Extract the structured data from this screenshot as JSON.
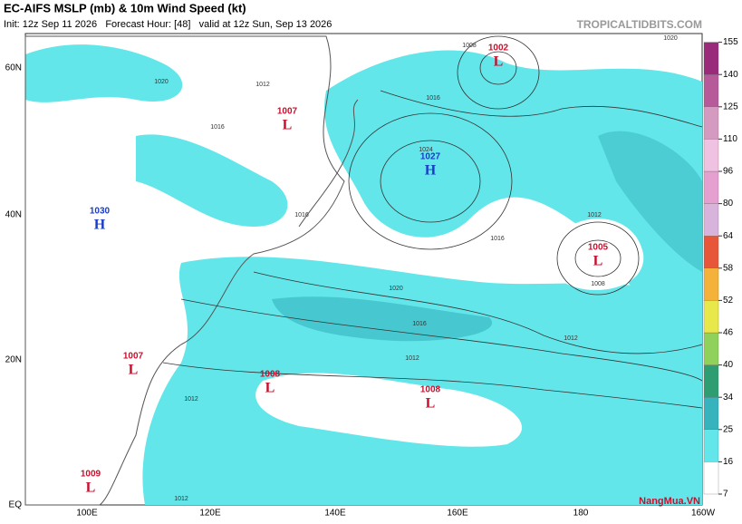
{
  "header": {
    "title": "EC-AIFS MSLP (mb) & 10m Wind Speed (kt)",
    "subtitle": "Init: 12z Sep 11 2026   Forecast Hour: [48]   valid at 12z Sun, Sep 13 2026",
    "source": "TROPICALTIDBITS.COM",
    "watermark": "NangMua.VN"
  },
  "latitude_labels": [
    "60N",
    "40N",
    "20N",
    "EQ"
  ],
  "longitude_labels": [
    "100E",
    "120E",
    "140E",
    "160E",
    "180",
    "160W"
  ],
  "colorbar": {
    "levels": [
      7,
      16,
      25,
      34,
      40,
      46,
      52,
      58,
      64,
      80,
      96,
      110,
      125,
      140,
      155
    ],
    "colors": [
      "#ffffff",
      "#63e6ea",
      "#36b3bd",
      "#2e9e72",
      "#8fd15a",
      "#e8e84a",
      "#f4b23a",
      "#e8563a",
      "#d8b4dc",
      "#e6a0d0",
      "#eec2e0",
      "#d49ac0",
      "#b65a9a",
      "#9a2a7a"
    ]
  },
  "centers": [
    {
      "symbol": "L",
      "value": 1002
    },
    {
      "symbol": "L",
      "value": 1007
    },
    {
      "symbol": "H",
      "value": 1027
    },
    {
      "symbol": "H",
      "value": 1030
    },
    {
      "symbol": "L",
      "value": 1005
    },
    {
      "symbol": "L",
      "value": 1007
    },
    {
      "symbol": "L",
      "value": 1008
    },
    {
      "symbol": "L",
      "value": 1008
    },
    {
      "symbol": "L",
      "value": 1009
    }
  ],
  "isobar_labels": [
    1008,
    1020,
    1012,
    1016,
    1016,
    1024,
    1016,
    1016,
    1020,
    1016,
    1012,
    1012,
    1012,
    1012,
    1008,
    1012,
    1020
  ]
}
